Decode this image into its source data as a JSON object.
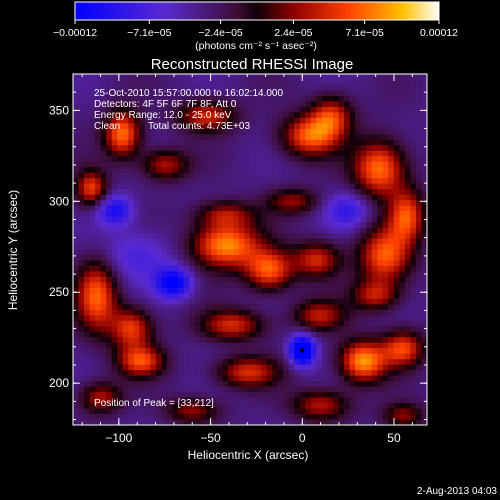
{
  "chart_data": {
    "type": "heatmap",
    "title": "Reconstructed RHESSI Image",
    "xlabel": "Heliocentric X (arcsec)",
    "ylabel": "Heliocentric Y (arcsec)",
    "xlim": [
      -125,
      68
    ],
    "ylim": [
      177,
      370
    ],
    "x_ticks": [
      {
        "value": -100,
        "label": "−100"
      },
      {
        "value": -50,
        "label": "−50"
      },
      {
        "value": 0,
        "label": "0"
      },
      {
        "value": 50,
        "label": "50"
      }
    ],
    "y_ticks": [
      {
        "value": 200,
        "label": "200"
      },
      {
        "value": 250,
        "label": "250"
      },
      {
        "value": 300,
        "label": "300"
      },
      {
        "value": 350,
        "label": "350"
      }
    ],
    "colorbar": {
      "range": [
        -0.00012,
        0.00012
      ],
      "ticks": [
        {
          "value": -0.00012,
          "label": "−0.00012"
        },
        {
          "value": -7.1e-05,
          "label": "−7.1e−05"
        },
        {
          "value": -2.4e-05,
          "label": "−2.4e−05"
        },
        {
          "value": 2.4e-05,
          "label": "2.4e−05"
        },
        {
          "value": 7.1e-05,
          "label": "7.1e−05"
        },
        {
          "value": 0.00012,
          "label": "0.00012"
        }
      ],
      "unit_label": "(photons cm⁻² s⁻¹ asec⁻²)"
    },
    "annotations": {
      "time_range": "25-Oct-2010 15:57:00.000 to 16:02:14.000",
      "detectors": "Detectors: 4F 5F 6F 7F 8F, Att 0",
      "energy_range": "Energy Range: 12.0 - 25.0 keV",
      "algorithm": "Clean",
      "total_counts": "Total counts: 4.73E+03",
      "peak": "Position of Peak = [33,212]"
    },
    "sources": [
      {
        "x": -98,
        "y": 337,
        "value": 0.00011,
        "sx": 7,
        "sy": 9
      },
      {
        "x": -115,
        "y": 307,
        "value": 9e-05,
        "sx": 6,
        "sy": 7
      },
      {
        "x": -75,
        "y": 320,
        "value": 7e-05,
        "sx": 9,
        "sy": 6
      },
      {
        "x": -52,
        "y": 347,
        "value": 8e-05,
        "sx": 11,
        "sy": 6
      },
      {
        "x": 4,
        "y": 336,
        "value": 0.0001,
        "sx": 11,
        "sy": 8
      },
      {
        "x": 16,
        "y": 347,
        "value": 8e-05,
        "sx": 8,
        "sy": 8
      },
      {
        "x": 42,
        "y": 318,
        "value": 0.00011,
        "sx": 10,
        "sy": 11
      },
      {
        "x": 57,
        "y": 292,
        "value": 9e-05,
        "sx": 7,
        "sy": 10
      },
      {
        "x": -42,
        "y": 293,
        "value": 6e-05,
        "sx": 11,
        "sy": 5
      },
      {
        "x": -5,
        "y": 300,
        "value": 6e-05,
        "sx": 10,
        "sy": 5
      },
      {
        "x": -42,
        "y": 276,
        "value": 0.00012,
        "sx": 13,
        "sy": 9
      },
      {
        "x": -18,
        "y": 262,
        "value": 0.0001,
        "sx": 9,
        "sy": 8
      },
      {
        "x": 45,
        "y": 270,
        "value": 0.0001,
        "sx": 10,
        "sy": 11
      },
      {
        "x": 8,
        "y": 268,
        "value": 8e-05,
        "sx": 9,
        "sy": 7
      },
      {
        "x": 40,
        "y": 248,
        "value": 7e-05,
        "sx": 9,
        "sy": 6
      },
      {
        "x": -112,
        "y": 248,
        "value": 0.0001,
        "sx": 8,
        "sy": 14
      },
      {
        "x": -93,
        "y": 230,
        "value": 9e-05,
        "sx": 8,
        "sy": 8
      },
      {
        "x": -38,
        "y": 232,
        "value": 8e-05,
        "sx": 12,
        "sy": 6
      },
      {
        "x": 9,
        "y": 237,
        "value": 7e-05,
        "sx": 10,
        "sy": 6
      },
      {
        "x": 33,
        "y": 212,
        "value": 0.00012,
        "sx": 9,
        "sy": 8
      },
      {
        "x": 55,
        "y": 219,
        "value": 9e-05,
        "sx": 8,
        "sy": 7
      },
      {
        "x": -88,
        "y": 212,
        "value": 9e-05,
        "sx": 9,
        "sy": 6
      },
      {
        "x": -30,
        "y": 206,
        "value": 8e-05,
        "sx": 12,
        "sy": 6
      },
      {
        "x": -110,
        "y": 192,
        "value": 7e-05,
        "sx": 8,
        "sy": 6
      },
      {
        "x": 10,
        "y": 188,
        "value": 7e-05,
        "sx": 11,
        "sy": 6
      },
      {
        "x": -60,
        "y": 185,
        "value": 6e-05,
        "sx": 10,
        "sy": 5
      },
      {
        "x": 55,
        "y": 182,
        "value": 6e-05,
        "sx": 8,
        "sy": 5
      },
      {
        "x": -70,
        "y": 255,
        "value": -9e-05,
        "sx": 7,
        "sy": 6
      },
      {
        "x": 0,
        "y": 218,
        "value": -0.00012,
        "sx": 5,
        "sy": 6
      },
      {
        "x": -102,
        "y": 295,
        "value": -7e-05,
        "sx": 7,
        "sy": 6
      },
      {
        "x": -90,
        "y": 270,
        "value": -4e-05,
        "sx": 14,
        "sy": 10
      },
      {
        "x": 25,
        "y": 295,
        "value": -5e-05,
        "sx": 9,
        "sy": 7
      }
    ]
  },
  "footer": {
    "date": "2-Aug-2013 04:03"
  }
}
